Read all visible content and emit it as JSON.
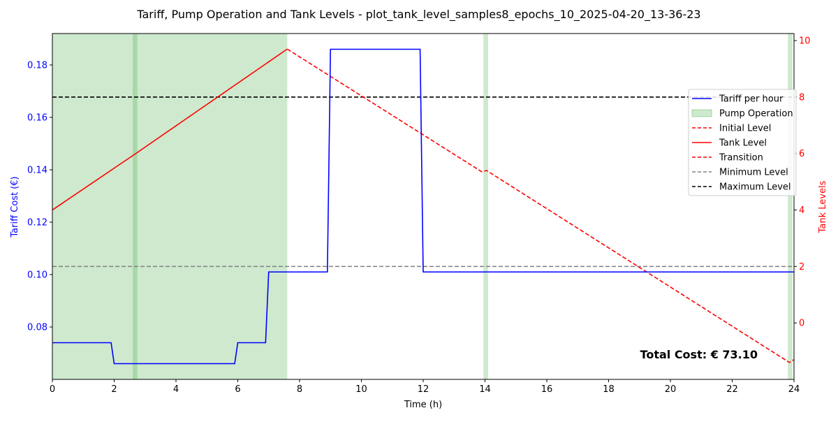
{
  "chart_data": {
    "type": "line",
    "title": "Tariff, Pump Operation and Tank Levels - plot_tank_level_samples8_epochs_10_2025-04-20_13-36-23",
    "xlabel": "Time (h)",
    "ylabel_left": "Tariff Cost (€)",
    "ylabel_right": "Tank Levels",
    "xlim": [
      0,
      24
    ],
    "ylim_left": [
      0.06,
      0.192
    ],
    "ylim_right": [
      -2.0,
      10.25
    ],
    "x_ticks": [
      "0",
      "2",
      "4",
      "6",
      "8",
      "10",
      "12",
      "14",
      "16",
      "18",
      "20",
      "22",
      "24"
    ],
    "y_left_ticks": [
      "0.08",
      "0.10",
      "0.12",
      "0.14",
      "0.16",
      "0.18"
    ],
    "y_right_ticks": [
      "0",
      "2",
      "4",
      "6",
      "8",
      "10"
    ],
    "legend_placement": "right",
    "legend": [
      "Tariff per hour",
      "Pump Operation",
      "Initial Level",
      "Tank Level",
      "Transition",
      "Minimum Level",
      "Maximum Level"
    ],
    "annotation": "Total Cost: € 73.10",
    "colors": {
      "tariff": "#0000ff",
      "pump": "#2ca02c",
      "tank": "#ff0000",
      "minimum": "#808080",
      "maximum": "#000000"
    },
    "tariff_per_hour": {
      "x": [
        0,
        1.9,
        2.0,
        5.9,
        6.0,
        6.9,
        7.0,
        8.9,
        9.0,
        11.9,
        12.0,
        24
      ],
      "y": [
        0.074,
        0.074,
        0.066,
        0.066,
        0.074,
        0.074,
        0.101,
        0.101,
        0.186,
        0.186,
        0.101,
        0.101
      ]
    },
    "pump_operation": [
      [
        0,
        7.6
      ],
      [
        2.6,
        2.75
      ],
      [
        13.95,
        14.1
      ],
      [
        23.8,
        23.95
      ]
    ],
    "tank_level": {
      "x": [
        0,
        2.7,
        7.6
      ],
      "y": [
        4.0,
        6.0,
        9.7
      ]
    },
    "transition": {
      "x": [
        7.6,
        13.9,
        14.05,
        23.85,
        24
      ],
      "y": [
        9.7,
        5.35,
        5.4,
        -1.4,
        -1.3
      ]
    },
    "minimum_level": 2.0,
    "maximum_level": 8.0
  }
}
